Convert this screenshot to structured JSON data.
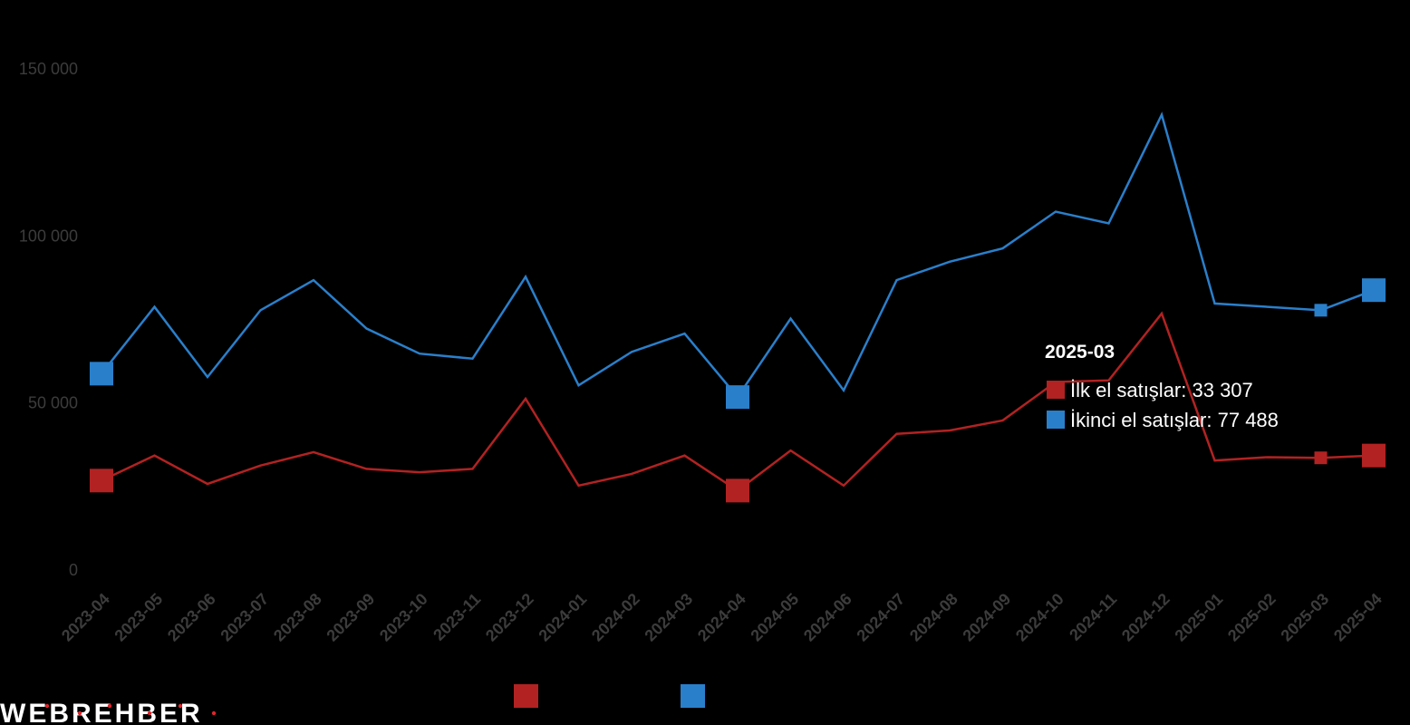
{
  "chart_data": {
    "type": "line",
    "title": "",
    "xlabel": "",
    "ylabel": "",
    "categories": [
      "2023-04",
      "2023-05",
      "2023-06",
      "2023-07",
      "2023-08",
      "2023-09",
      "2023-10",
      "2023-11",
      "2023-12",
      "2024-01",
      "2024-02",
      "2024-03",
      "2024-04",
      "2024-05",
      "2024-06",
      "2024-07",
      "2024-08",
      "2024-09",
      "2024-10",
      "2024-11",
      "2024-12",
      "2025-01",
      "2025-02",
      "2025-03",
      "2025-04"
    ],
    "ylim": [
      0,
      150000
    ],
    "yticks": [
      0,
      50000,
      100000,
      150000
    ],
    "ytick_labels": [
      "0",
      "50 000",
      "100 000",
      "150 000"
    ],
    "grid": false,
    "legend_position": "bottom",
    "series": [
      {
        "name": "İlk el satışlar",
        "color": "#b22222",
        "values": [
          26500,
          34000,
          25500,
          31000,
          35000,
          30000,
          29000,
          30000,
          51000,
          25000,
          28500,
          34000,
          23500,
          35500,
          25000,
          40500,
          41500,
          44500,
          56000,
          56500,
          76500,
          32500,
          33500,
          33307,
          34000
        ],
        "highlight_index": [
          0,
          12,
          23,
          24
        ]
      },
      {
        "name": "İkinci el satışlar",
        "color": "#2a7fca",
        "values": [
          58500,
          78500,
          57500,
          77500,
          86500,
          72000,
          64500,
          63000,
          87500,
          55000,
          65000,
          70500,
          51500,
          75000,
          53500,
          86500,
          92000,
          96000,
          107000,
          103500,
          136000,
          79500,
          78500,
          77488,
          83500
        ],
        "highlight_index": [
          0,
          12,
          23,
          24
        ]
      }
    ],
    "tooltip": {
      "title": "2025-03",
      "rows": [
        {
          "series": "İlk el satışlar",
          "label": "İlk el satışlar: 33 307",
          "color": "#b22222"
        },
        {
          "series": "İkinci el satışlar",
          "label": "İkinci el satışlar: 77 488",
          "color": "#2a7fca"
        }
      ]
    }
  },
  "legend": {
    "items": [
      {
        "name": "İlk el satışlar",
        "color": "#b22222"
      },
      {
        "name": "İkinci el satışlar",
        "color": "#2a7fca"
      }
    ]
  },
  "logo": {
    "text": "WEBREHBER",
    "dot_color": "#e0252b"
  }
}
